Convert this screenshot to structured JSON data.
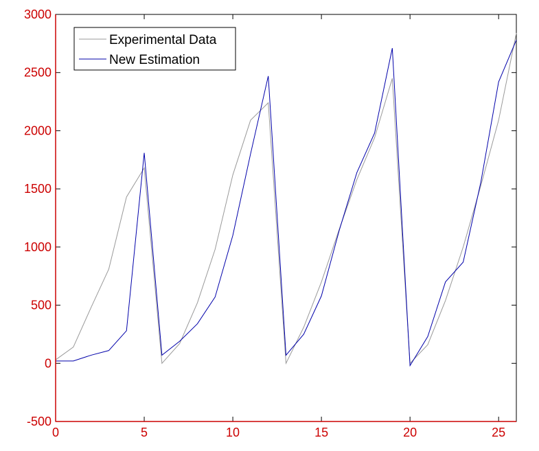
{
  "chart_data": {
    "type": "line",
    "title": "",
    "xlabel": "",
    "ylabel": "",
    "xlim": [
      0,
      26
    ],
    "ylim": [
      -500,
      3000
    ],
    "xticks": [
      0,
      5,
      10,
      15,
      20,
      25
    ],
    "yticks": [
      -500,
      0,
      500,
      1000,
      1500,
      2000,
      2500,
      3000
    ],
    "grid": false,
    "legend_position": "top-left",
    "axis_color": "#cc0000",
    "series": [
      {
        "name": "Experimental Data",
        "color": "#999999",
        "x": [
          0,
          1,
          2,
          3,
          4,
          5,
          6,
          7,
          8,
          9,
          10,
          11,
          12,
          13,
          14,
          15,
          16,
          17,
          18,
          19,
          20,
          21,
          22,
          23,
          24,
          25,
          26
        ],
        "y": [
          30,
          140,
          480,
          810,
          1430,
          1680,
          0,
          170,
          520,
          980,
          1620,
          2090,
          2240,
          0,
          310,
          700,
          1150,
          1580,
          1940,
          2450,
          0,
          160,
          540,
          1000,
          1530,
          2090,
          2840
        ]
      },
      {
        "name": "New Estimation",
        "color": "#0000aa",
        "x": [
          0,
          1,
          2,
          3,
          4,
          5,
          6,
          7,
          8,
          9,
          10,
          11,
          12,
          13,
          14,
          15,
          16,
          17,
          18,
          19,
          20,
          21,
          22,
          23,
          24,
          25,
          26
        ],
        "y": [
          20,
          20,
          70,
          110,
          280,
          1810,
          70,
          190,
          340,
          570,
          1100,
          1800,
          2470,
          70,
          250,
          580,
          1140,
          1640,
          1980,
          2710,
          -20,
          230,
          700,
          870,
          1560,
          2420,
          2780
        ]
      }
    ]
  }
}
